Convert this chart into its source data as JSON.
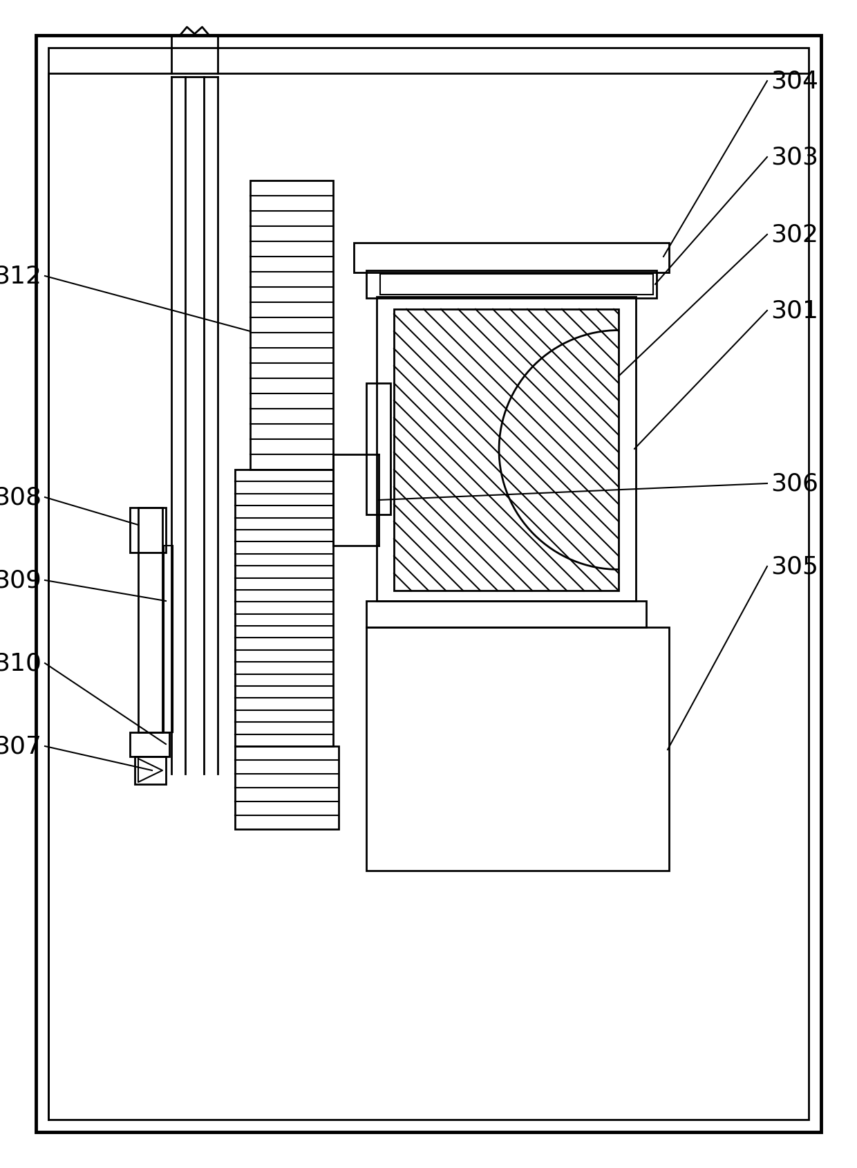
{
  "bg_color": "#ffffff",
  "line_color": "#000000",
  "lw_thick": 3.5,
  "lw_med": 2.0,
  "lw_thin": 1.5,
  "fig_width": 12.4,
  "fig_height": 16.9
}
